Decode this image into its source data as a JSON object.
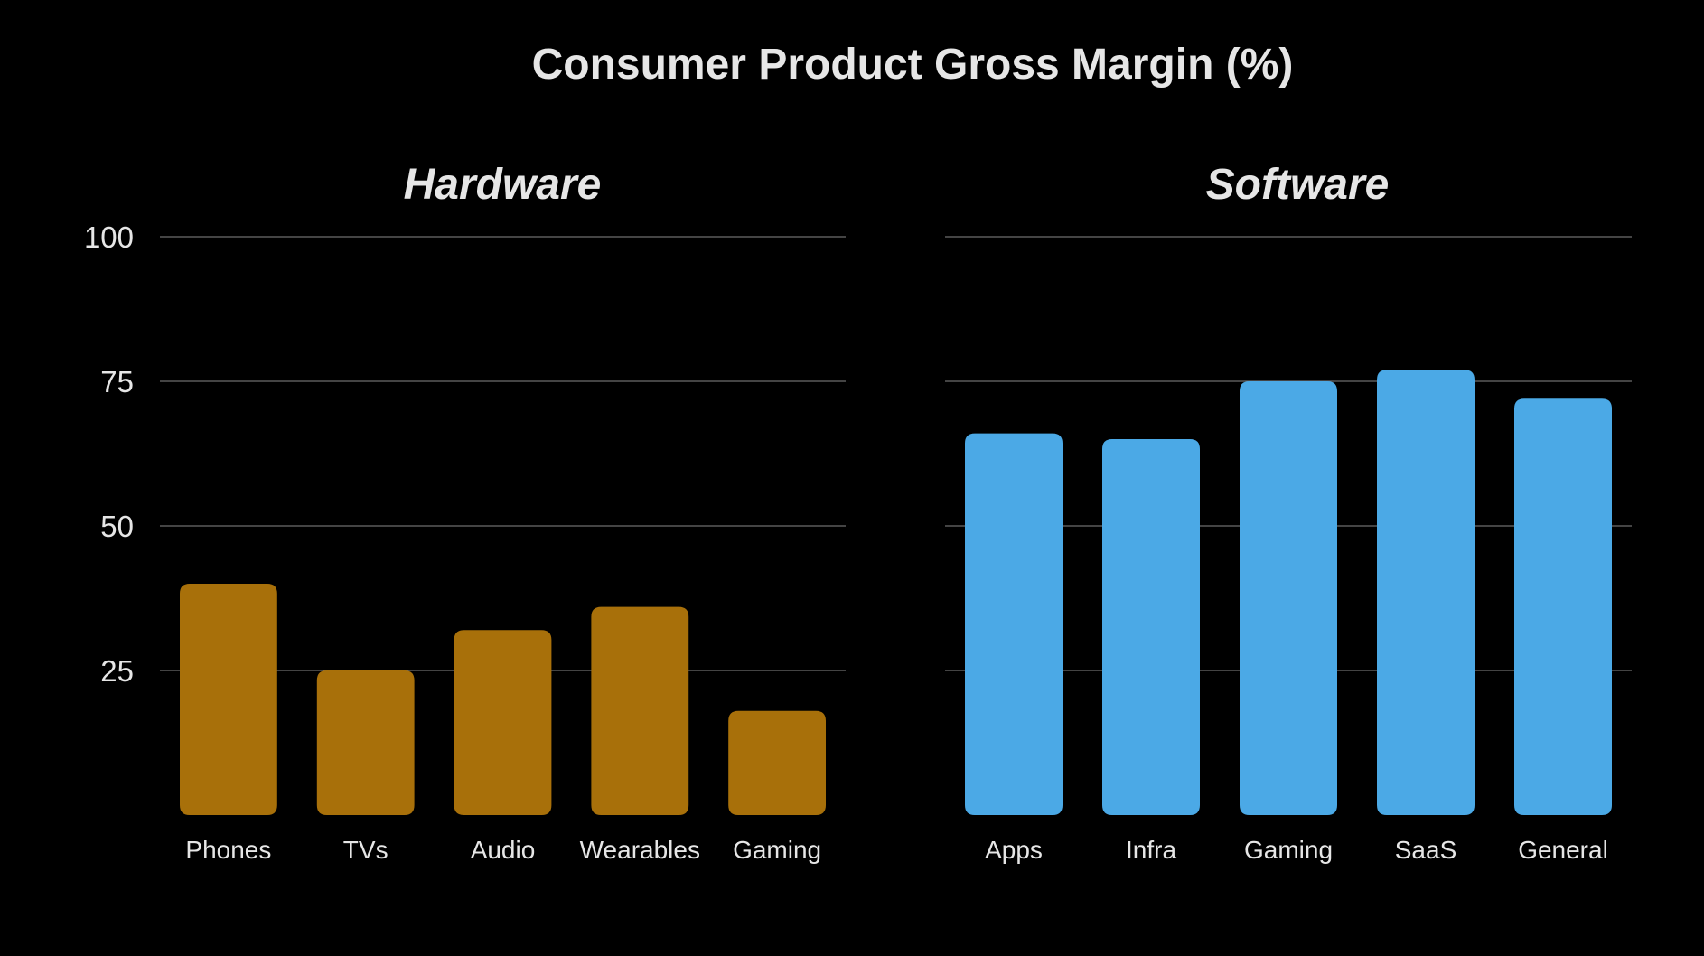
{
  "title": "Consumer Product Gross Margin (%)",
  "colors": {
    "background": "#000000",
    "text": "#e6e6e6",
    "grid": "#6e6e6e",
    "hardware": "#a8700a",
    "software": "#4ba9e6"
  },
  "chart_data": [
    {
      "type": "bar",
      "title": "Hardware",
      "categories": [
        "Phones",
        "TVs",
        "Audio",
        "Wearables",
        "Gaming"
      ],
      "values": [
        40,
        25,
        32,
        36,
        18
      ],
      "color_key": "hardware",
      "xlabel": "",
      "ylabel": "",
      "ylim": [
        0,
        100
      ],
      "yticks": [
        25,
        50,
        75,
        100
      ],
      "show_tick_labels": true,
      "grid": true
    },
    {
      "type": "bar",
      "title": "Software",
      "categories": [
        "Apps",
        "Infra",
        "Gaming",
        "SaaS",
        "General"
      ],
      "values": [
        66,
        65,
        75,
        77,
        72
      ],
      "color_key": "software",
      "xlabel": "",
      "ylabel": "",
      "ylim": [
        0,
        100
      ],
      "yticks": [
        25,
        50,
        75,
        100
      ],
      "show_tick_labels": false,
      "grid": true
    }
  ]
}
